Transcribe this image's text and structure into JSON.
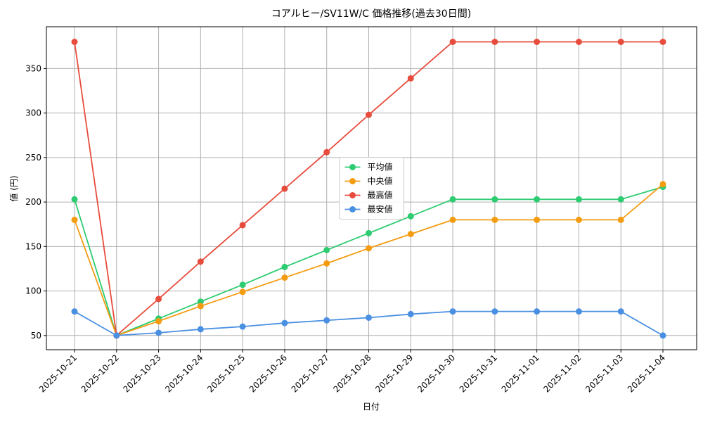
{
  "chart_data": {
    "type": "line",
    "title": "コアルヒー/SV11W/C 価格推移(過去30日間)",
    "x_label": "日付",
    "y_label": "値 (円)",
    "categories": [
      "2025-10-21",
      "2025-10-22",
      "2025-10-23",
      "2025-10-24",
      "2025-10-25",
      "2025-10-26",
      "2025-10-27",
      "2025-10-28",
      "2025-10-29",
      "2025-10-30",
      "2025-10-31",
      "2025-11-01",
      "2025-11-02",
      "2025-11-03",
      "2025-11-04"
    ],
    "series": [
      {
        "name": "平均値",
        "color": "#2ecc71",
        "values": [
          203,
          50,
          69,
          88,
          107,
          127,
          146,
          165,
          184,
          203,
          203,
          203,
          203,
          203,
          217
        ]
      },
      {
        "name": "中央値",
        "color": "#f39c12",
        "values": [
          180,
          50,
          66,
          83,
          99,
          115,
          131,
          148,
          164,
          180,
          180,
          180,
          180,
          180,
          220
        ]
      },
      {
        "name": "最高値",
        "color": "#e74c3c",
        "values": [
          380,
          50,
          91,
          133,
          174,
          215,
          256,
          298,
          339,
          380,
          380,
          380,
          380,
          380,
          380
        ]
      },
      {
        "name": "最安値",
        "color": "#4a90e2",
        "values": [
          77,
          50,
          53,
          57,
          60,
          64,
          67,
          70,
          74,
          77,
          77,
          77,
          77,
          77,
          50
        ]
      }
    ],
    "ylim": [
      34,
      397
    ],
    "yticks": [
      50,
      100,
      150,
      200,
      250,
      300,
      350
    ],
    "grid": true,
    "legend": "center"
  }
}
